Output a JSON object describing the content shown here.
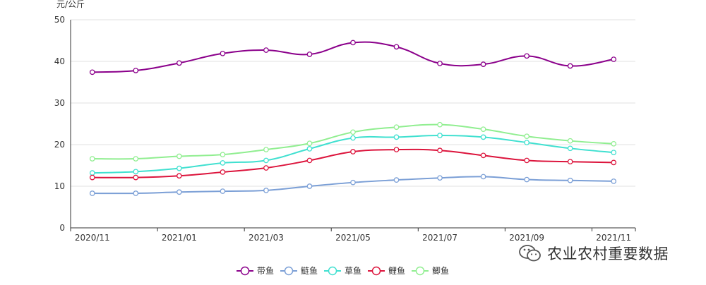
{
  "chart_data": {
    "type": "line",
    "ylabel": "元/公斤",
    "ylim": [
      0,
      50
    ],
    "yticks": [
      0,
      10,
      20,
      30,
      40,
      50
    ],
    "x": [
      "2020/11",
      "2020/12",
      "2021/01",
      "2021/02",
      "2021/03",
      "2021/04",
      "2021/05",
      "2021/06",
      "2021/07",
      "2021/08",
      "2021/09",
      "2021/10",
      "2021/11"
    ],
    "xtick_labels": [
      "2020/11",
      "2021/01",
      "2021/03",
      "2021/05",
      "2021/07",
      "2021/09",
      "2021/11"
    ],
    "grid": "horizontal",
    "legend_position": "bottom",
    "series": [
      {
        "name": "带鱼",
        "color": "#8B008B",
        "values": [
          37.4,
          37.8,
          39.6,
          41.9,
          42.7,
          41.7,
          44.5,
          43.5,
          39.5,
          39.3,
          41.3,
          38.9,
          40.5
        ]
      },
      {
        "name": "鲢鱼",
        "color": "#7B9FD6",
        "values": [
          8.3,
          8.3,
          8.6,
          8.8,
          9.0,
          10.0,
          10.9,
          11.5,
          12.0,
          12.3,
          11.6,
          11.4,
          11.2
        ]
      },
      {
        "name": "草鱼",
        "color": "#40E0D0",
        "values": [
          13.2,
          13.5,
          14.3,
          15.6,
          16.2,
          19.0,
          21.6,
          21.8,
          22.2,
          21.8,
          20.5,
          19.1,
          18.1
        ]
      },
      {
        "name": "鲤鱼",
        "color": "#DC143C",
        "values": [
          12.1,
          12.1,
          12.5,
          13.4,
          14.4,
          16.2,
          18.3,
          18.8,
          18.6,
          17.4,
          16.2,
          15.9,
          15.7
        ]
      },
      {
        "name": "鲫鱼",
        "color": "#90EE90",
        "values": [
          16.6,
          16.6,
          17.2,
          17.6,
          18.8,
          20.3,
          23.0,
          24.2,
          24.8,
          23.7,
          22.0,
          20.9,
          20.2
        ]
      }
    ]
  },
  "watermark": {
    "icon": "wechat-icon",
    "text": "农业农村重要数据"
  }
}
